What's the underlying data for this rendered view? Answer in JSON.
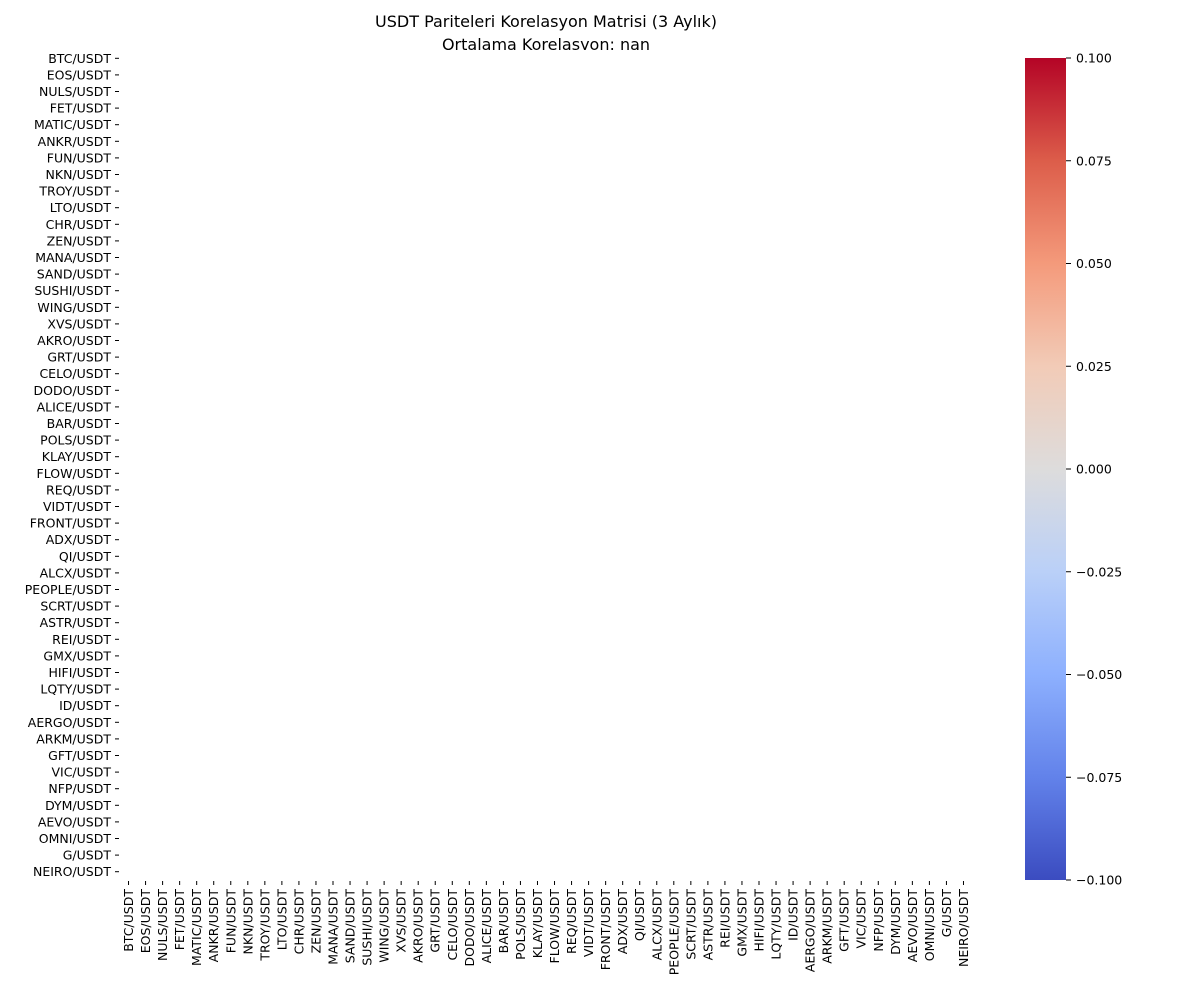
{
  "chart_data": {
    "type": "heatmap",
    "title": "USDT Pariteleri Korelasyon Matrisi (3 Aylık)",
    "subtitle": "Ortalama Korelasyon: nan",
    "xlabel": "",
    "ylabel": "",
    "labels": [
      "BTC/USDT",
      "EOS/USDT",
      "NULS/USDT",
      "FET/USDT",
      "MATIC/USDT",
      "ANKR/USDT",
      "FUN/USDT",
      "NKN/USDT",
      "TROY/USDT",
      "LTO/USDT",
      "CHR/USDT",
      "ZEN/USDT",
      "MANA/USDT",
      "SAND/USDT",
      "SUSHI/USDT",
      "WING/USDT",
      "XVS/USDT",
      "AKRO/USDT",
      "GRT/USDT",
      "CELO/USDT",
      "DODO/USDT",
      "ALICE/USDT",
      "BAR/USDT",
      "POLS/USDT",
      "KLAY/USDT",
      "FLOW/USDT",
      "REQ/USDT",
      "VIDT/USDT",
      "FRONT/USDT",
      "ADX/USDT",
      "QI/USDT",
      "ALCX/USDT",
      "PEOPLE/USDT",
      "SCRT/USDT",
      "ASTR/USDT",
      "REI/USDT",
      "GMX/USDT",
      "HIFI/USDT",
      "LQTY/USDT",
      "ID/USDT",
      "AERGO/USDT",
      "ARKM/USDT",
      "GFT/USDT",
      "VIC/USDT",
      "NFP/USDT",
      "DYM/USDT",
      "AEVO/USDT",
      "OMNI/USDT",
      "G/USDT",
      "NEIRO/USDT"
    ],
    "values": "all NaN (empty matrix)",
    "colorbar": {
      "colormap": "coolwarm",
      "range": [
        -0.1,
        0.1
      ],
      "ticks": [
        "0.100",
        "0.075",
        "0.050",
        "0.025",
        "0.000",
        "−0.025",
        "−0.050",
        "−0.075",
        "−0.100"
      ],
      "colors": [
        "#b40426",
        "#dc5d4a",
        "#f49a7b",
        "#f2cbb7",
        "#dddcdc",
        "#bad0f8",
        "#8db0fe",
        "#6282ea",
        "#3b4cc0"
      ]
    },
    "grid": false,
    "legend": "colorbar right"
  }
}
